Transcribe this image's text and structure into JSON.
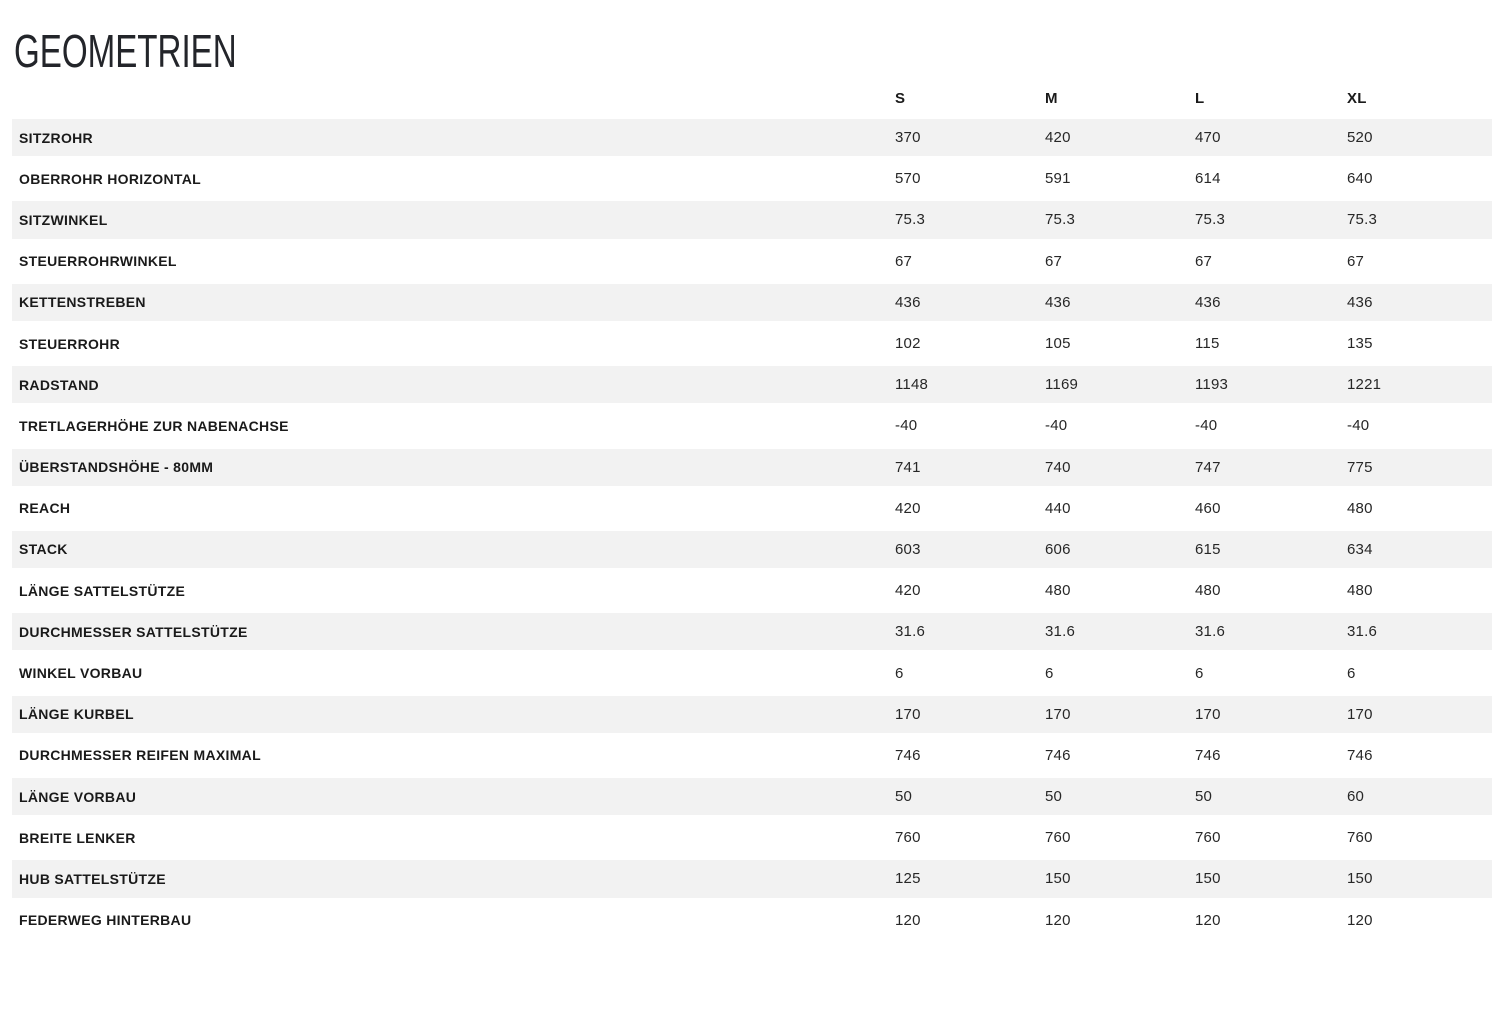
{
  "title": "GEOMETRIEN",
  "colors": {
    "row_alt_bg": "#f2f2f2",
    "text": "#1d1d1d",
    "background": "#ffffff"
  },
  "table": {
    "size_headers": [
      "S",
      "M",
      "L",
      "XL"
    ],
    "rows": [
      {
        "label": "SITZROHR",
        "values": [
          "370",
          "420",
          "470",
          "520"
        ]
      },
      {
        "label": "OBERROHR HORIZONTAL",
        "values": [
          "570",
          "591",
          "614",
          "640"
        ]
      },
      {
        "label": "SITZWINKEL",
        "values": [
          "75.3",
          "75.3",
          "75.3",
          "75.3"
        ]
      },
      {
        "label": "STEUERROHRWINKEL",
        "values": [
          "67",
          "67",
          "67",
          "67"
        ]
      },
      {
        "label": "KETTENSTREBEN",
        "values": [
          "436",
          "436",
          "436",
          "436"
        ]
      },
      {
        "label": "STEUERROHR",
        "values": [
          "102",
          "105",
          "115",
          "135"
        ]
      },
      {
        "label": "RADSTAND",
        "values": [
          "1148",
          "1169",
          "1193",
          "1221"
        ]
      },
      {
        "label": "TRETLAGERHÖHE ZUR NABENACHSE",
        "values": [
          "-40",
          "-40",
          "-40",
          "-40"
        ]
      },
      {
        "label": "ÜBERSTANDSHÖHE - 80MM",
        "values": [
          "741",
          "740",
          "747",
          "775"
        ]
      },
      {
        "label": "REACH",
        "values": [
          "420",
          "440",
          "460",
          "480"
        ]
      },
      {
        "label": "STACK",
        "values": [
          "603",
          "606",
          "615",
          "634"
        ]
      },
      {
        "label": "LÄNGE SATTELSTÜTZE",
        "values": [
          "420",
          "480",
          "480",
          "480"
        ]
      },
      {
        "label": "DURCHMESSER SATTELSTÜTZE",
        "values": [
          "31.6",
          "31.6",
          "31.6",
          "31.6"
        ]
      },
      {
        "label": "WINKEL VORBAU",
        "values": [
          "6",
          "6",
          "6",
          "6"
        ]
      },
      {
        "label": "LÄNGE KURBEL",
        "values": [
          "170",
          "170",
          "170",
          "170"
        ]
      },
      {
        "label": "DURCHMESSER REIFEN MAXIMAL",
        "values": [
          "746",
          "746",
          "746",
          "746"
        ]
      },
      {
        "label": "LÄNGE VORBAU",
        "values": [
          "50",
          "50",
          "50",
          "60"
        ]
      },
      {
        "label": "BREITE LENKER",
        "values": [
          "760",
          "760",
          "760",
          "760"
        ]
      },
      {
        "label": "HUB SATTELSTÜTZE",
        "values": [
          "125",
          "150",
          "150",
          "150"
        ]
      },
      {
        "label": "FEDERWEG HINTERBAU",
        "values": [
          "120",
          "120",
          "120",
          "120"
        ]
      }
    ]
  }
}
